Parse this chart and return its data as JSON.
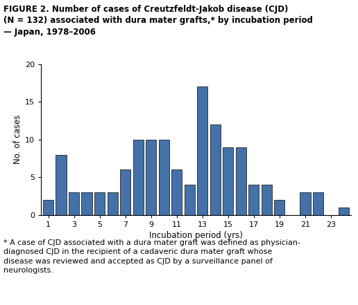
{
  "title_line1": "FIGURE 2. Number of cases of Creutzfeldt-Jakob disease (CJD)",
  "title_line2": "(N = 132) associated with dura mater grafts,* by incubation period",
  "title_line3": "— Japan, 1978–2006",
  "xlabel": "Incubation period (yrs)",
  "ylabel": "No. of cases",
  "years": [
    1,
    2,
    3,
    4,
    5,
    6,
    7,
    8,
    9,
    10,
    11,
    12,
    13,
    14,
    15,
    16,
    17,
    18,
    19,
    20,
    21,
    22,
    23,
    24
  ],
  "values": [
    2,
    8,
    3,
    3,
    3,
    3,
    6,
    10,
    10,
    10,
    6,
    4,
    17,
    12,
    9,
    9,
    4,
    4,
    2,
    0,
    3,
    3,
    0,
    1
  ],
  "bar_color": "#4472a8",
  "bar_edgecolor": "#222222",
  "ylim": [
    0,
    20
  ],
  "yticks": [
    0,
    5,
    10,
    15,
    20
  ],
  "xticks": [
    1,
    3,
    5,
    7,
    9,
    11,
    13,
    15,
    17,
    19,
    21,
    23
  ],
  "footnote_star": "* A case of CJD associated with a dura mater graft was defined as physician-",
  "footnote_line2": "diagnosed CJD in the recipient of a cadaveric dura mater graft whose",
  "footnote_line3": "disease was reviewed and accepted as CJD by a surveillance panel of",
  "footnote_line4": "neurologists.",
  "title_fontsize": 8.5,
  "axis_label_fontsize": 8.5,
  "tick_fontsize": 8,
  "footnote_fontsize": 8
}
